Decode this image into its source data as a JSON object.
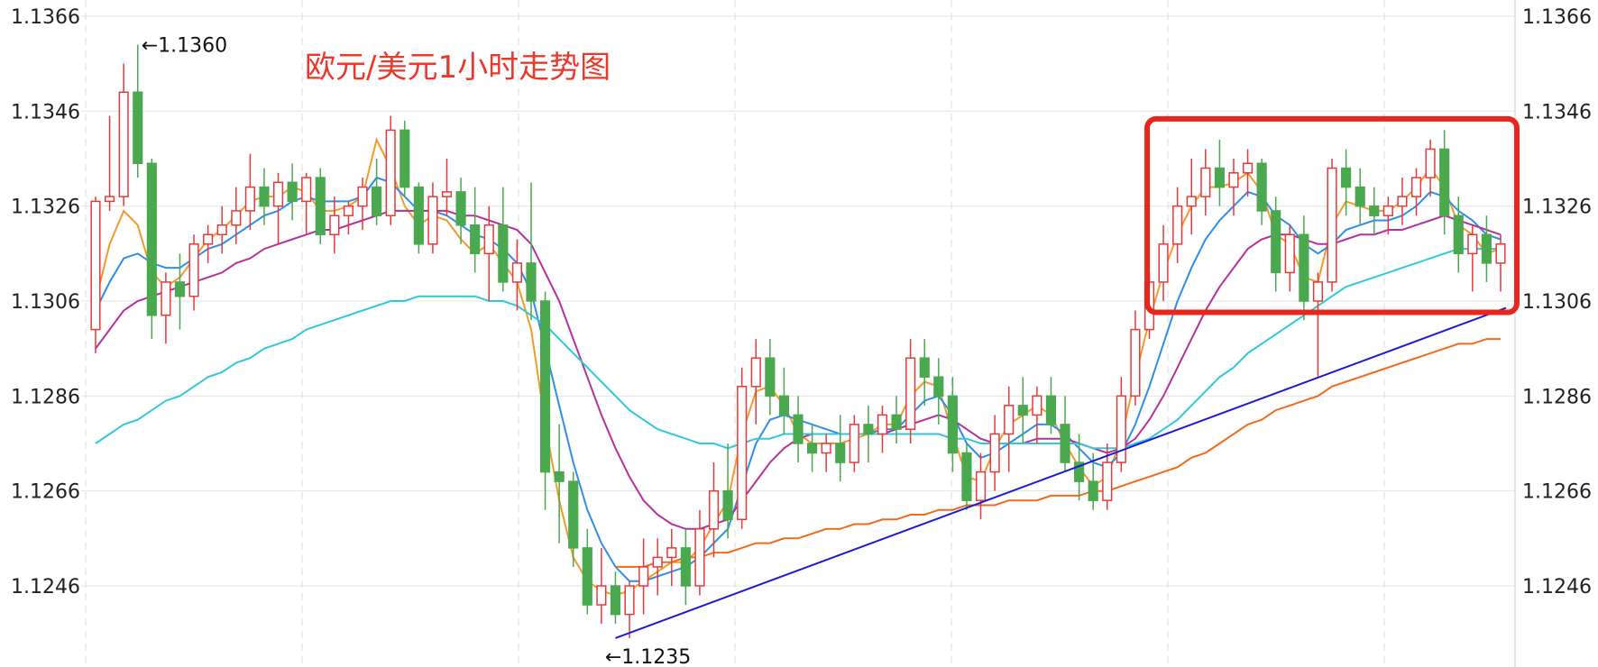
{
  "chart_data": {
    "type": "candlestick",
    "title": "欧元/美元1小时走势图",
    "y_ticks": [
      1.1246,
      1.1266,
      1.1286,
      1.1306,
      1.1326,
      1.1346,
      1.1366
    ],
    "y_tick_labels": [
      "1.1246",
      "1.1266",
      "1.1286",
      "1.1306",
      "1.1326",
      "1.1346",
      "1.1366"
    ],
    "ylim": [
      1.1232,
      1.1367
    ],
    "grid": true,
    "colors": {
      "up_candle": "#e8393a",
      "down_candle": "#4aa84f",
      "ma_orange": "#f39a2b",
      "ma_blue": "#2f8fe8",
      "ma_purple": "#b6329b",
      "ma_cyan": "#31c9d9",
      "ma_long": "#f26a1b",
      "trendline": "#1c1cd6",
      "highlight_box": "#e8261b",
      "title": "#e8392b",
      "grid_h": "#e4e4e4",
      "grid_v": "#dcdcdc"
    },
    "annotations": [
      {
        "text": "←1.1360",
        "price": 1.136,
        "candle_index": 3
      },
      {
        "text": "←1.1235",
        "price": 1.1235,
        "candle_index": 36
      }
    ],
    "candles": [
      [
        1.13,
        1.1328,
        1.1295,
        1.1327
      ],
      [
        1.1327,
        1.1345,
        1.1325,
        1.1328
      ],
      [
        1.1328,
        1.1356,
        1.1326,
        1.135
      ],
      [
        1.135,
        1.136,
        1.1332,
        1.1335
      ],
      [
        1.1335,
        1.1336,
        1.1298,
        1.1303
      ],
      [
        1.1303,
        1.1312,
        1.1297,
        1.131
      ],
      [
        1.131,
        1.1316,
        1.13,
        1.1307
      ],
      [
        1.1307,
        1.132,
        1.1304,
        1.1318
      ],
      [
        1.1318,
        1.1322,
        1.1314,
        1.132
      ],
      [
        1.132,
        1.1326,
        1.1316,
        1.1322
      ],
      [
        1.1322,
        1.133,
        1.1318,
        1.1325
      ],
      [
        1.1325,
        1.1337,
        1.1321,
        1.133
      ],
      [
        1.133,
        1.1334,
        1.1322,
        1.1326
      ],
      [
        1.1326,
        1.1333,
        1.1318,
        1.1331
      ],
      [
        1.1331,
        1.1335,
        1.1323,
        1.1327
      ],
      [
        1.1327,
        1.1333,
        1.132,
        1.1332
      ],
      [
        1.1332,
        1.1334,
        1.1318,
        1.132
      ],
      [
        1.132,
        1.1328,
        1.1316,
        1.1324
      ],
      [
        1.1324,
        1.1327,
        1.132,
        1.1326
      ],
      [
        1.1326,
        1.1332,
        1.1321,
        1.133
      ],
      [
        1.133,
        1.1336,
        1.1322,
        1.1324
      ],
      [
        1.1324,
        1.1345,
        1.1322,
        1.1342
      ],
      [
        1.1342,
        1.1344,
        1.1328,
        1.133
      ],
      [
        1.133,
        1.1331,
        1.1316,
        1.1318
      ],
      [
        1.1318,
        1.1331,
        1.1316,
        1.1328
      ],
      [
        1.1328,
        1.1336,
        1.1324,
        1.1329
      ],
      [
        1.1329,
        1.1332,
        1.1318,
        1.1322
      ],
      [
        1.1322,
        1.133,
        1.1312,
        1.1316
      ],
      [
        1.1316,
        1.1326,
        1.1306,
        1.1322
      ],
      [
        1.1322,
        1.133,
        1.1308,
        1.131
      ],
      [
        1.131,
        1.1319,
        1.1304,
        1.1314
      ],
      [
        1.1314,
        1.1331,
        1.1302,
        1.1306
      ],
      [
        1.1306,
        1.1308,
        1.1262,
        1.127
      ],
      [
        1.127,
        1.128,
        1.1255,
        1.1268
      ],
      [
        1.1268,
        1.127,
        1.125,
        1.1254
      ],
      [
        1.1254,
        1.1258,
        1.124,
        1.1242
      ],
      [
        1.1242,
        1.1254,
        1.1238,
        1.1246
      ],
      [
        1.1246,
        1.1249,
        1.1238,
        1.124
      ],
      [
        1.124,
        1.1247,
        1.1235,
        1.1246
      ],
      [
        1.1246,
        1.1256,
        1.124,
        1.125
      ],
      [
        1.125,
        1.1256,
        1.1244,
        1.1252
      ],
      [
        1.1252,
        1.1258,
        1.1246,
        1.1254
      ],
      [
        1.1254,
        1.1258,
        1.1242,
        1.1246
      ],
      [
        1.1246,
        1.1262,
        1.1244,
        1.1258
      ],
      [
        1.1258,
        1.1272,
        1.1252,
        1.1266
      ],
      [
        1.1266,
        1.1276,
        1.1256,
        1.126
      ],
      [
        1.126,
        1.1292,
        1.1258,
        1.1288
      ],
      [
        1.1288,
        1.1298,
        1.128,
        1.1294
      ],
      [
        1.1294,
        1.1298,
        1.1282,
        1.1286
      ],
      [
        1.1286,
        1.1292,
        1.1278,
        1.1282
      ],
      [
        1.1282,
        1.1286,
        1.1272,
        1.1276
      ],
      [
        1.1276,
        1.128,
        1.127,
        1.1274
      ],
      [
        1.1274,
        1.1278,
        1.127,
        1.1276
      ],
      [
        1.1276,
        1.1282,
        1.1268,
        1.1272
      ],
      [
        1.1272,
        1.1282,
        1.127,
        1.128
      ],
      [
        1.128,
        1.1284,
        1.1272,
        1.1278
      ],
      [
        1.1278,
        1.1284,
        1.1274,
        1.1282
      ],
      [
        1.1282,
        1.1286,
        1.1276,
        1.1279
      ],
      [
        1.1279,
        1.1298,
        1.1276,
        1.1294
      ],
      [
        1.1294,
        1.1298,
        1.1284,
        1.129
      ],
      [
        1.129,
        1.1294,
        1.128,
        1.1286
      ],
      [
        1.1286,
        1.129,
        1.127,
        1.1274
      ],
      [
        1.1274,
        1.1276,
        1.1262,
        1.1264
      ],
      [
        1.1264,
        1.1274,
        1.126,
        1.127
      ],
      [
        1.127,
        1.1282,
        1.1266,
        1.1278
      ],
      [
        1.1278,
        1.1288,
        1.127,
        1.1284
      ],
      [
        1.1284,
        1.129,
        1.1276,
        1.1282
      ],
      [
        1.1282,
        1.1288,
        1.1276,
        1.1286
      ],
      [
        1.1286,
        1.129,
        1.1278,
        1.128
      ],
      [
        1.128,
        1.1286,
        1.127,
        1.1272
      ],
      [
        1.1272,
        1.1278,
        1.1264,
        1.1268
      ],
      [
        1.1268,
        1.1274,
        1.1262,
        1.1264
      ],
      [
        1.1264,
        1.1276,
        1.1262,
        1.1272
      ],
      [
        1.1272,
        1.129,
        1.127,
        1.1286
      ],
      [
        1.1286,
        1.1304,
        1.1284,
        1.13
      ],
      [
        1.13,
        1.1312,
        1.1298,
        1.131
      ],
      [
        1.131,
        1.1322,
        1.1306,
        1.1318
      ],
      [
        1.1318,
        1.133,
        1.1314,
        1.1326
      ],
      [
        1.1326,
        1.1336,
        1.132,
        1.1328
      ],
      [
        1.1328,
        1.1338,
        1.1324,
        1.1334
      ],
      [
        1.1334,
        1.134,
        1.1326,
        1.133
      ],
      [
        1.133,
        1.1336,
        1.1324,
        1.1333
      ],
      [
        1.1333,
        1.1338,
        1.1328,
        1.1335
      ],
      [
        1.1335,
        1.1336,
        1.1322,
        1.1325
      ],
      [
        1.1325,
        1.1328,
        1.1308,
        1.1312
      ],
      [
        1.1312,
        1.1322,
        1.1308,
        1.132
      ],
      [
        1.132,
        1.1324,
        1.1302,
        1.1306
      ],
      [
        1.1306,
        1.1312,
        1.129,
        1.131
      ],
      [
        1.131,
        1.1336,
        1.1308,
        1.1334
      ],
      [
        1.1334,
        1.1338,
        1.1324,
        1.133
      ],
      [
        1.133,
        1.1334,
        1.1322,
        1.1326
      ],
      [
        1.1326,
        1.133,
        1.132,
        1.1324
      ],
      [
        1.1324,
        1.1328,
        1.132,
        1.1326
      ],
      [
        1.1326,
        1.1332,
        1.1322,
        1.1328
      ],
      [
        1.1328,
        1.1334,
        1.1324,
        1.1332
      ],
      [
        1.1332,
        1.134,
        1.1328,
        1.1338
      ],
      [
        1.1338,
        1.1342,
        1.132,
        1.1324
      ],
      [
        1.1324,
        1.1328,
        1.1312,
        1.1316
      ],
      [
        1.1316,
        1.1322,
        1.1308,
        1.132
      ],
      [
        1.132,
        1.1324,
        1.131,
        1.1314
      ],
      [
        1.1314,
        1.132,
        1.1308,
        1.1318
      ]
    ],
    "ma_series": [
      {
        "color_key": "ma_orange",
        "values": [
          1.1306,
          1.1318,
          1.1325,
          1.1322,
          1.1312,
          1.1309,
          1.1311,
          1.1315,
          1.1319,
          1.1321,
          1.1324,
          1.1327,
          1.1328,
          1.1328,
          1.133,
          1.1329,
          1.1325,
          1.1325,
          1.1326,
          1.1328,
          1.134,
          1.1334,
          1.1326,
          1.1322,
          1.1324,
          1.1323,
          1.1319,
          1.1316,
          1.1318,
          1.1314,
          1.131,
          1.13,
          1.128,
          1.1264,
          1.1252,
          1.1247,
          1.1245,
          1.1244,
          1.1245,
          1.1247,
          1.1249,
          1.1251,
          1.1251,
          1.1254,
          1.1259,
          1.1264,
          1.1278,
          1.1287,
          1.1288,
          1.1284,
          1.1278,
          1.1276,
          1.1276,
          1.1276,
          1.1277,
          1.1278,
          1.128,
          1.128,
          1.1286,
          1.1289,
          1.1288,
          1.1278,
          1.1269,
          1.1268,
          1.1275,
          1.128,
          1.1282,
          1.1284,
          1.1282,
          1.1276,
          1.1271,
          1.1267,
          1.1269,
          1.1277,
          1.129,
          1.1302,
          1.1312,
          1.132,
          1.1326,
          1.133,
          1.133,
          1.1331,
          1.1333,
          1.1329,
          1.132,
          1.1318,
          1.1311,
          1.131,
          1.1322,
          1.1327,
          1.1326,
          1.1325,
          1.1325,
          1.1327,
          1.133,
          1.1334,
          1.133,
          1.1322,
          1.132,
          1.1316,
          1.1317
        ]
      },
      {
        "color_key": "ma_blue",
        "values": [
          1.1304,
          1.131,
          1.1315,
          1.1316,
          1.1314,
          1.1313,
          1.1313,
          1.1315,
          1.1317,
          1.1318,
          1.132,
          1.1322,
          1.1324,
          1.1325,
          1.1327,
          1.1328,
          1.1327,
          1.1327,
          1.1327,
          1.1328,
          1.1332,
          1.1331,
          1.1328,
          1.1325,
          1.1325,
          1.1324,
          1.1322,
          1.132,
          1.1319,
          1.1317,
          1.1314,
          1.1308,
          1.1296,
          1.1284,
          1.1272,
          1.1262,
          1.1255,
          1.125,
          1.1247,
          1.1247,
          1.1248,
          1.1249,
          1.125,
          1.1252,
          1.1255,
          1.1258,
          1.1267,
          1.1276,
          1.1281,
          1.1282,
          1.1281,
          1.128,
          1.1279,
          1.1278,
          1.1278,
          1.1278,
          1.1279,
          1.1279,
          1.1282,
          1.1285,
          1.1286,
          1.1282,
          1.1276,
          1.1273,
          1.1274,
          1.1276,
          1.1278,
          1.128,
          1.128,
          1.1278,
          1.1275,
          1.1272,
          1.1271,
          1.1274,
          1.128,
          1.1288,
          1.1297,
          1.1306,
          1.1313,
          1.1319,
          1.1323,
          1.1326,
          1.1329,
          1.1328,
          1.1324,
          1.1322,
          1.1318,
          1.1316,
          1.1318,
          1.1321,
          1.1322,
          1.1323,
          1.1323,
          1.1324,
          1.1326,
          1.1329,
          1.1328,
          1.1325,
          1.1323,
          1.132,
          1.1319
        ]
      },
      {
        "color_key": "ma_purple",
        "values": [
          1.1296,
          1.13,
          1.1304,
          1.1306,
          1.1307,
          1.1308,
          1.1309,
          1.131,
          1.1311,
          1.1312,
          1.1314,
          1.1315,
          1.1317,
          1.1318,
          1.1319,
          1.132,
          1.1321,
          1.1321,
          1.1322,
          1.1323,
          1.1324,
          1.1325,
          1.1325,
          1.1325,
          1.1325,
          1.1325,
          1.1324,
          1.1324,
          1.1323,
          1.1322,
          1.1321,
          1.1318,
          1.1312,
          1.1306,
          1.1298,
          1.129,
          1.1282,
          1.1275,
          1.1269,
          1.1264,
          1.1261,
          1.1259,
          1.1258,
          1.1258,
          1.1259,
          1.126,
          1.1264,
          1.1268,
          1.1272,
          1.1275,
          1.1277,
          1.1278,
          1.1278,
          1.1278,
          1.1278,
          1.1278,
          1.1278,
          1.1279,
          1.128,
          1.1281,
          1.1282,
          1.1281,
          1.1279,
          1.1277,
          1.1276,
          1.1276,
          1.1276,
          1.1277,
          1.1277,
          1.1277,
          1.1276,
          1.1275,
          1.1274,
          1.1275,
          1.1277,
          1.1281,
          1.1286,
          1.1292,
          1.1298,
          1.1304,
          1.1309,
          1.1313,
          1.1317,
          1.1319,
          1.132,
          1.132,
          1.1319,
          1.1318,
          1.1318,
          1.1319,
          1.132,
          1.132,
          1.1321,
          1.1321,
          1.1322,
          1.1323,
          1.1324,
          1.1323,
          1.1322,
          1.1321,
          1.132
        ]
      },
      {
        "color_key": "ma_cyan",
        "values": [
          1.1276,
          1.1278,
          1.128,
          1.1281,
          1.1283,
          1.1285,
          1.1286,
          1.1288,
          1.129,
          1.1291,
          1.1293,
          1.1294,
          1.1296,
          1.1297,
          1.1298,
          1.13,
          1.1301,
          1.1302,
          1.1303,
          1.1304,
          1.1305,
          1.1306,
          1.1306,
          1.1307,
          1.1307,
          1.1307,
          1.1307,
          1.1307,
          1.1306,
          1.1306,
          1.1305,
          1.1303,
          1.1301,
          1.1298,
          1.1295,
          1.1292,
          1.1289,
          1.1286,
          1.1283,
          1.1281,
          1.1279,
          1.1278,
          1.1277,
          1.1276,
          1.1276,
          1.1275,
          1.1276,
          1.1277,
          1.1277,
          1.1278,
          1.1278,
          1.1278,
          1.1278,
          1.1278,
          1.1278,
          1.1278,
          1.1278,
          1.1278,
          1.1278,
          1.1278,
          1.1278,
          1.1277,
          1.1277,
          1.1276,
          1.1276,
          1.1276,
          1.1276,
          1.1276,
          1.1276,
          1.1276,
          1.1276,
          1.1275,
          1.1275,
          1.1275,
          1.1276,
          1.1277,
          1.1279,
          1.1281,
          1.1284,
          1.1287,
          1.129,
          1.1292,
          1.1295,
          1.1297,
          1.1299,
          1.1301,
          1.1303,
          1.1305,
          1.1307,
          1.1309,
          1.131,
          1.1311,
          1.1312,
          1.1313,
          1.1314,
          1.1315,
          1.1316,
          1.1317,
          1.1317,
          1.1317,
          1.1317
        ]
      },
      {
        "color_key": "ma_long",
        "values": [
          null,
          null,
          null,
          null,
          null,
          null,
          null,
          null,
          null,
          null,
          null,
          null,
          null,
          null,
          null,
          null,
          null,
          null,
          null,
          null,
          null,
          null,
          null,
          null,
          null,
          null,
          null,
          null,
          null,
          null,
          null,
          null,
          null,
          null,
          null,
          null,
          null,
          1.125,
          1.125,
          1.125,
          1.1251,
          1.1251,
          1.1252,
          1.1252,
          1.1253,
          1.1253,
          1.1254,
          1.1255,
          1.1255,
          1.1256,
          1.1256,
          1.1257,
          1.1258,
          1.1258,
          1.1259,
          1.1259,
          1.126,
          1.126,
          1.1261,
          1.1261,
          1.1262,
          1.1262,
          1.1263,
          1.1263,
          1.1263,
          1.1264,
          1.1264,
          1.1264,
          1.1265,
          1.1265,
          1.1265,
          1.1266,
          1.1266,
          1.1267,
          1.1268,
          1.1269,
          1.127,
          1.1271,
          1.1273,
          1.1274,
          1.1276,
          1.1278,
          1.128,
          1.1281,
          1.1283,
          1.1284,
          1.1285,
          1.1286,
          1.1288,
          1.1289,
          1.129,
          1.1291,
          1.1292,
          1.1293,
          1.1294,
          1.1295,
          1.1296,
          1.1297,
          1.1297,
          1.1298,
          1.1298
        ]
      }
    ],
    "trendline": {
      "from": {
        "candle_index": 37,
        "price": 1.1235
      },
      "to": {
        "candle_index": 100,
        "price": 1.1304
      }
    },
    "highlight_box": {
      "from_candle": 76,
      "to_candle": 100,
      "price_top": 1.1344,
      "price_bottom": 1.1304
    }
  }
}
